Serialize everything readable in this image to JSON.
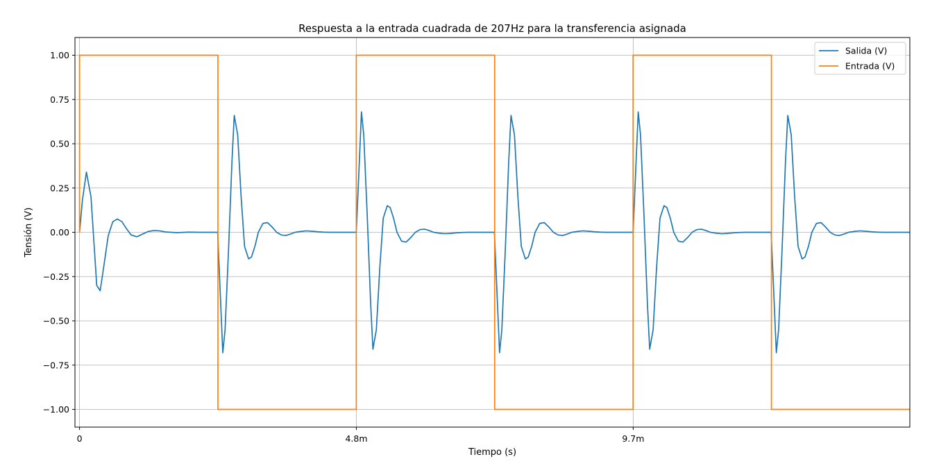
{
  "chart_data": {
    "type": "line",
    "title": "Respuesta a la entrada cuadrada de 207Hz para la transferencia asignada",
    "xlabel": "Tiempo (s)",
    "ylabel": "Tensión (V)",
    "xlim": [
      -8e-05,
      0.01449
    ],
    "ylim": [
      -1.1,
      1.1
    ],
    "xticks": [
      {
        "value": 0,
        "label": "0"
      },
      {
        "value": 0.004831,
        "label": "4.8m"
      },
      {
        "value": 0.009662,
        "label": "9.7m"
      }
    ],
    "yticks": [
      {
        "value": 1.0,
        "label": "1.00"
      },
      {
        "value": 0.75,
        "label": "0.75"
      },
      {
        "value": 0.5,
        "label": "0.50"
      },
      {
        "value": 0.25,
        "label": "0.25"
      },
      {
        "value": 0.0,
        "label": "0.00"
      },
      {
        "value": -0.25,
        "label": "−0.25"
      },
      {
        "value": -0.5,
        "label": "−0.50"
      },
      {
        "value": -0.75,
        "label": "−0.75"
      },
      {
        "value": -1.0,
        "label": "−1.00"
      }
    ],
    "grid": true,
    "legend_position": "top-right",
    "series": [
      {
        "name": "Salida (V)",
        "color": "#1f77b4",
        "x": [
          0,
          5e-05,
          0.00012,
          0.0002,
          0.00026,
          0.0003,
          0.00036,
          0.00042,
          0.0005,
          0.00058,
          0.00066,
          0.00074,
          0.00082,
          0.0009,
          0.001,
          0.0011,
          0.0012,
          0.0013,
          0.0014,
          0.0015,
          0.0017,
          0.0019,
          0.0021,
          0.0023,
          0.00241,
          0.00245,
          0.0025,
          0.00254,
          0.0026,
          0.00266,
          0.0027,
          0.00276,
          0.00282,
          0.00288,
          0.00295,
          0.003,
          0.00306,
          0.00312,
          0.0032,
          0.00328,
          0.00336,
          0.00344,
          0.00352,
          0.0036,
          0.00368,
          0.00376,
          0.00386,
          0.00396,
          0.00406,
          0.00416,
          0.00426,
          0.00436,
          0.0045,
          0.0047,
          0.00483,
          0.00487,
          0.00492,
          0.00496,
          0.00502,
          0.00508,
          0.00512,
          0.00518,
          0.00524,
          0.0053,
          0.00537,
          0.00542,
          0.00548,
          0.00554,
          0.00562,
          0.0057,
          0.00578,
          0.00586,
          0.00594,
          0.00602,
          0.0061,
          0.00618,
          0.00628,
          0.00638,
          0.00648,
          0.00658,
          0.00668,
          0.00678,
          0.0069,
          0.0071,
          0.00724,
          0.00728,
          0.00733,
          0.00737,
          0.00743,
          0.00749,
          0.00753,
          0.00759,
          0.00765,
          0.00771,
          0.00778,
          0.00783,
          0.00789,
          0.00795,
          0.00803,
          0.00811,
          0.00819,
          0.00827,
          0.00835,
          0.00843,
          0.00851,
          0.00859,
          0.00869,
          0.00879,
          0.00889,
          0.00899,
          0.00909,
          0.00919,
          0.0093,
          0.0095,
          0.00966,
          0.0097,
          0.00975,
          0.00979,
          0.00985,
          0.00991,
          0.00995,
          0.01001,
          0.01007,
          0.01013,
          0.0102,
          0.01025,
          0.01031,
          0.01037,
          0.01045,
          0.01053,
          0.01061,
          0.01069,
          0.01077,
          0.01085,
          0.01093,
          0.01101,
          0.01111,
          0.01121,
          0.01131,
          0.01141,
          0.01151,
          0.01161,
          0.0117,
          0.0119,
          0.01207,
          0.01211,
          0.01216,
          0.0122,
          0.01226,
          0.01232,
          0.01236,
          0.01242,
          0.01248,
          0.01254,
          0.01261,
          0.01266,
          0.01272,
          0.01278,
          0.01286,
          0.01294,
          0.01302,
          0.0131,
          0.01318,
          0.01326,
          0.01334,
          0.01342,
          0.01352,
          0.01362,
          0.01372,
          0.01382,
          0.01392,
          0.01402,
          0.0142,
          0.01449
        ],
        "y": [
          0,
          0.18,
          0.34,
          0.2,
          -0.1,
          -0.3,
          -0.33,
          -0.2,
          -0.02,
          0.06,
          0.075,
          0.06,
          0.02,
          -0.015,
          -0.025,
          -0.01,
          0.005,
          0.01,
          0.008,
          0.002,
          -0.002,
          0.001,
          0.0,
          0.0,
          0.0,
          -0.3,
          -0.68,
          -0.55,
          -0.1,
          0.4,
          0.66,
          0.55,
          0.2,
          -0.08,
          -0.15,
          -0.14,
          -0.08,
          0.0,
          0.05,
          0.055,
          0.03,
          0.0,
          -0.015,
          -0.018,
          -0.01,
          0.0,
          0.005,
          0.008,
          0.006,
          0.003,
          0.001,
          0.0,
          0.0,
          0.0,
          0.0,
          0.3,
          0.68,
          0.55,
          0.1,
          -0.4,
          -0.66,
          -0.55,
          -0.2,
          0.08,
          0.15,
          0.14,
          0.08,
          0.0,
          -0.05,
          -0.055,
          -0.03,
          0.0,
          0.015,
          0.018,
          0.01,
          0.0,
          -0.005,
          -0.008,
          -0.006,
          -0.003,
          -0.001,
          0.0,
          0.0,
          0.0,
          0.0,
          -0.3,
          -0.68,
          -0.55,
          -0.1,
          0.4,
          0.66,
          0.55,
          0.2,
          -0.08,
          -0.15,
          -0.14,
          -0.08,
          0.0,
          0.05,
          0.055,
          0.03,
          0.0,
          -0.015,
          -0.018,
          -0.01,
          0.0,
          0.005,
          0.008,
          0.006,
          0.003,
          0.001,
          0.0,
          0.0,
          0.0,
          0.0,
          0.3,
          0.68,
          0.55,
          0.1,
          -0.4,
          -0.66,
          -0.55,
          -0.2,
          0.08,
          0.15,
          0.14,
          0.08,
          0.0,
          -0.05,
          -0.055,
          -0.03,
          0.0,
          0.015,
          0.018,
          0.01,
          0.0,
          -0.005,
          -0.008,
          -0.006,
          -0.003,
          -0.001,
          0.0,
          0.0,
          0.0,
          0.0,
          -0.3,
          -0.68,
          -0.55,
          -0.1,
          0.4,
          0.66,
          0.55,
          0.2,
          -0.08,
          -0.15,
          -0.14,
          -0.08,
          0.0,
          0.05,
          0.055,
          0.03,
          0.0,
          -0.015,
          -0.018,
          -0.01,
          0.0,
          0.005,
          0.008,
          0.006,
          0.003,
          0.001,
          0.0,
          0.0,
          0.0
        ]
      },
      {
        "name": "Entrada (V)",
        "color": "#ff7f0e",
        "x": [
          0,
          0,
          0.002415,
          0.002415,
          0.00483,
          0.00483,
          0.007245,
          0.007245,
          0.00966,
          0.00966,
          0.012075,
          0.012075,
          0.01449
        ],
        "y": [
          0,
          1,
          1,
          -1,
          -1,
          1,
          1,
          -1,
          -1,
          1,
          1,
          -1,
          -1
        ]
      }
    ]
  }
}
